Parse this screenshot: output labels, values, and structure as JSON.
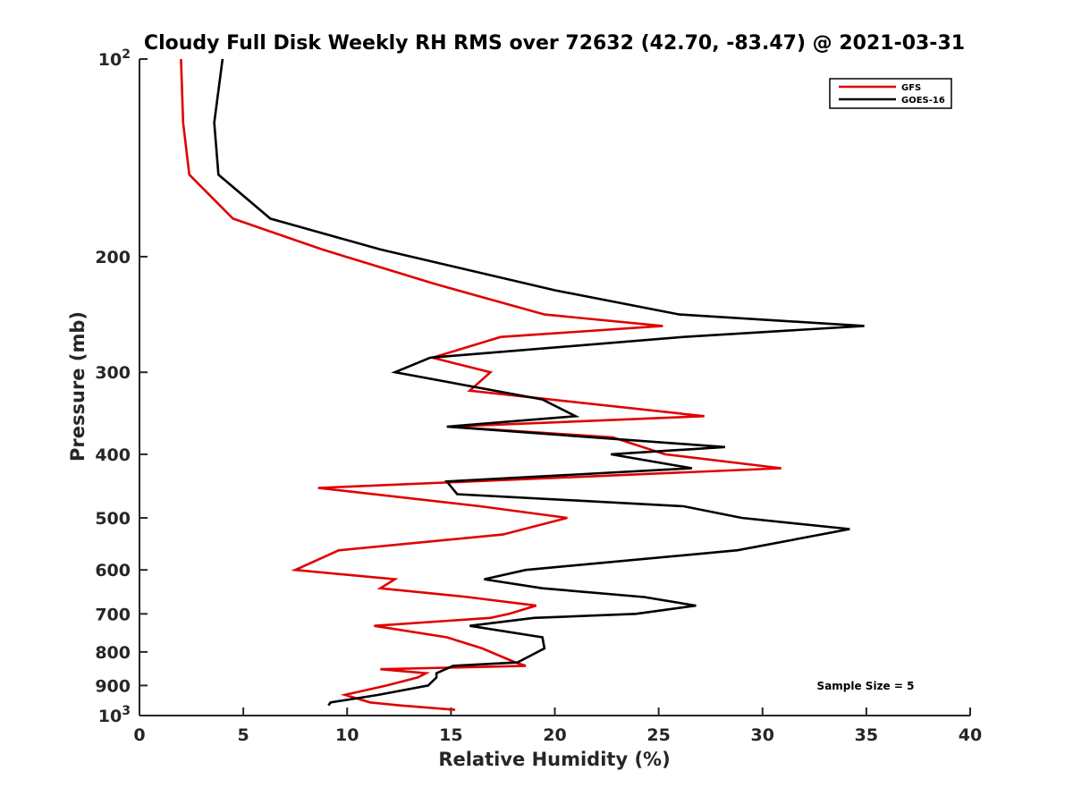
{
  "chart_data": {
    "type": "line",
    "title": "Cloudy Full Disk Weekly RH RMS over 72632 (42.70, -83.47) @ 2021-03-31",
    "xlabel": "Relative Humidity (%)",
    "ylabel": "Pressure (mb)",
    "xlim": [
      0,
      40
    ],
    "ylim": [
      100,
      1000
    ],
    "y_scale": "log",
    "y_reversed": true,
    "grid": false,
    "legend_position": "top-right",
    "annotation": "Sample Size = 5",
    "x_ticks": [
      0,
      5,
      10,
      15,
      20,
      25,
      30,
      35,
      40
    ],
    "x_tick_labels": [
      "0",
      "5",
      "10",
      "15",
      "20",
      "25",
      "30",
      "35",
      "40"
    ],
    "y_ticks": [
      100,
      200,
      300,
      400,
      500,
      600,
      700,
      800,
      900,
      1000
    ],
    "y_tick_labels": [
      {
        "base": "10",
        "exp": "2"
      },
      {
        "base": "200",
        "exp": ""
      },
      {
        "base": "300",
        "exp": ""
      },
      {
        "base": "400",
        "exp": ""
      },
      {
        "base": "500",
        "exp": ""
      },
      {
        "base": "600",
        "exp": ""
      },
      {
        "base": "700",
        "exp": ""
      },
      {
        "base": "800",
        "exp": ""
      },
      {
        "base": "900",
        "exp": ""
      },
      {
        "base": "10",
        "exp": "3"
      }
    ],
    "series": [
      {
        "name": "GFS",
        "color": "#e00000",
        "points": [
          [
            2.0,
            100
          ],
          [
            2.1,
            125
          ],
          [
            2.4,
            150
          ],
          [
            4.5,
            175
          ],
          [
            8.8,
            195
          ],
          [
            14.2,
            220
          ],
          [
            19.5,
            245
          ],
          [
            25.2,
            255
          ],
          [
            17.4,
            265
          ],
          [
            14.1,
            285
          ],
          [
            16.9,
            300
          ],
          [
            15.9,
            320
          ],
          [
            27.2,
            350
          ],
          [
            14.9,
            363
          ],
          [
            22.8,
            377
          ],
          [
            25.3,
            400
          ],
          [
            30.9,
            420
          ],
          [
            8.6,
            450
          ],
          [
            16.4,
            480
          ],
          [
            20.6,
            500
          ],
          [
            17.5,
            530
          ],
          [
            9.6,
            560
          ],
          [
            7.5,
            600
          ],
          [
            12.3,
            620
          ],
          [
            11.6,
            640
          ],
          [
            15.8,
            660
          ],
          [
            19.1,
            680
          ],
          [
            17.8,
            700
          ],
          [
            16.9,
            710
          ],
          [
            11.3,
            730
          ],
          [
            14.8,
            760
          ],
          [
            16.5,
            790
          ],
          [
            18.1,
            830
          ],
          [
            18.6,
            840
          ],
          [
            11.6,
            850
          ],
          [
            13.8,
            862
          ],
          [
            13.4,
            875
          ],
          [
            11.9,
            900
          ],
          [
            9.9,
            930
          ],
          [
            11.1,
            955
          ],
          [
            12.5,
            965
          ],
          [
            15.2,
            980
          ]
        ]
      },
      {
        "name": "GOES-16",
        "color": "#000000",
        "points": [
          [
            4.0,
            100
          ],
          [
            3.6,
            125
          ],
          [
            3.8,
            150
          ],
          [
            6.3,
            175
          ],
          [
            11.6,
            195
          ],
          [
            20.0,
            225
          ],
          [
            26.0,
            245
          ],
          [
            34.9,
            255
          ],
          [
            26.2,
            265
          ],
          [
            14.0,
            285
          ],
          [
            12.3,
            300
          ],
          [
            19.4,
            330
          ],
          [
            21.0,
            350
          ],
          [
            14.8,
            363
          ],
          [
            28.2,
            390
          ],
          [
            22.7,
            400
          ],
          [
            26.6,
            420
          ],
          [
            14.8,
            440
          ],
          [
            15.3,
            460
          ],
          [
            26.2,
            480
          ],
          [
            29.0,
            500
          ],
          [
            34.2,
            520
          ],
          [
            28.8,
            560
          ],
          [
            18.6,
            600
          ],
          [
            16.6,
            620
          ],
          [
            19.4,
            640
          ],
          [
            24.3,
            660
          ],
          [
            26.8,
            680
          ],
          [
            23.9,
            700
          ],
          [
            19.0,
            710
          ],
          [
            15.9,
            730
          ],
          [
            19.4,
            760
          ],
          [
            19.5,
            790
          ],
          [
            18.2,
            830
          ],
          [
            15.1,
            840
          ],
          [
            14.3,
            862
          ],
          [
            14.3,
            875
          ],
          [
            13.9,
            900
          ],
          [
            11.5,
            930
          ],
          [
            9.2,
            955
          ],
          [
            9.1,
            965
          ]
        ]
      }
    ]
  }
}
